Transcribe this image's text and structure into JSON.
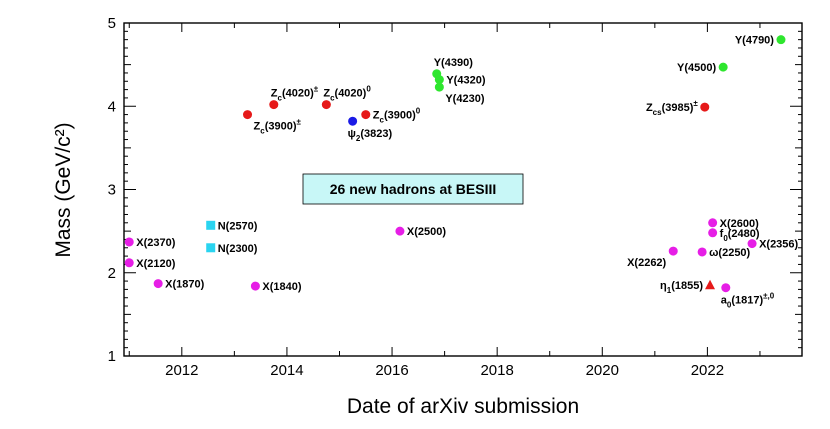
{
  "chart_data": {
    "type": "scatter",
    "title": "",
    "xlabel": "Date of arXiv submission",
    "ylabel": "Mass (GeV/c²)",
    "xlim": [
      2010.9,
      2023.8
    ],
    "ylim": [
      1,
      5
    ],
    "xticks": [
      2012,
      2014,
      2016,
      2018,
      2020,
      2022
    ],
    "yticks": [
      1,
      2,
      3,
      4,
      5
    ],
    "grid": false,
    "annotation": "26 new hadrons at BESIII",
    "colors": {
      "magenta": "#e61ee6",
      "cyan": "#2ad4f0",
      "red": "#e61919",
      "blue": "#1a1ae6",
      "green": "#2ee62e",
      "banner": "#c8f7f7"
    },
    "points": [
      {
        "label": "X(2370)",
        "x": 2011.0,
        "y": 2.37,
        "color": "magenta",
        "marker": "circle",
        "pos": "right"
      },
      {
        "label": "X(2120)",
        "x": 2011.0,
        "y": 2.12,
        "color": "magenta",
        "marker": "circle",
        "pos": "right"
      },
      {
        "label": "X(1870)",
        "x": 2011.55,
        "y": 1.87,
        "color": "magenta",
        "marker": "circle",
        "pos": "right"
      },
      {
        "label": "N(2570)",
        "x": 2012.55,
        "y": 2.57,
        "color": "cyan",
        "marker": "square",
        "pos": "right"
      },
      {
        "label": "N(2300)",
        "x": 2012.55,
        "y": 2.3,
        "color": "cyan",
        "marker": "square",
        "pos": "right"
      },
      {
        "label": "Zc(3900)±",
        "base": "Z",
        "sub": "c",
        "rest": "(3900)",
        "sup": "±",
        "x": 2013.25,
        "y": 3.9,
        "color": "red",
        "marker": "circle",
        "pos": "below-right"
      },
      {
        "label": "X(1840)",
        "x": 2013.4,
        "y": 1.84,
        "color": "magenta",
        "marker": "circle",
        "pos": "right"
      },
      {
        "label": "Zc(4020)±",
        "base": "Z",
        "sub": "c",
        "rest": "(4020)",
        "sup": "±",
        "x": 2013.75,
        "y": 4.02,
        "color": "red",
        "marker": "circle",
        "pos": "above-right"
      },
      {
        "label": "Zc(4020)0",
        "base": "Z",
        "sub": "c",
        "rest": "(4020)",
        "sup": "0",
        "x": 2014.75,
        "y": 4.02,
        "color": "red",
        "marker": "circle",
        "pos": "above-right"
      },
      {
        "label": "ψ2(3823)",
        "base": "ψ",
        "sub": "2",
        "rest": "(3823)",
        "x": 2015.25,
        "y": 3.82,
        "color": "blue",
        "marker": "circle",
        "pos": "below"
      },
      {
        "label": "Zc(3900)0",
        "base": "Z",
        "sub": "c",
        "rest": "(3900)",
        "sup": "0",
        "x": 2015.5,
        "y": 3.9,
        "color": "red",
        "marker": "circle",
        "pos": "right"
      },
      {
        "label": "X(2500)",
        "x": 2016.15,
        "y": 2.5,
        "color": "magenta",
        "marker": "circle",
        "pos": "right"
      },
      {
        "label": "Y(4390)",
        "x": 2016.85,
        "y": 4.39,
        "color": "green",
        "marker": "circle",
        "pos": "above-right"
      },
      {
        "label": "Y(4320)",
        "x": 2016.9,
        "y": 4.32,
        "color": "green",
        "marker": "circle",
        "pos": "right"
      },
      {
        "label": "Y(4230)",
        "x": 2016.9,
        "y": 4.23,
        "color": "green",
        "marker": "circle",
        "pos": "below-right"
      },
      {
        "label": "X(2262)",
        "x": 2021.35,
        "y": 2.26,
        "color": "magenta",
        "marker": "circle",
        "pos": "below-left"
      },
      {
        "label": "Zcs(3985)±",
        "base": "Z",
        "sub": "cs",
        "rest": "(3985)",
        "sup": "±",
        "x": 2021.95,
        "y": 3.99,
        "color": "red",
        "marker": "circle",
        "pos": "left"
      },
      {
        "label": "ω(2250)",
        "x": 2021.9,
        "y": 2.25,
        "color": "magenta",
        "marker": "circle",
        "pos": "right"
      },
      {
        "label": "η1(1855)",
        "base": "η",
        "sub": "1",
        "rest": "(1855)",
        "x": 2022.05,
        "y": 1.85,
        "color": "red",
        "marker": "triangle",
        "pos": "left"
      },
      {
        "label": "X(2600)",
        "x": 2022.1,
        "y": 2.6,
        "color": "magenta",
        "marker": "circle",
        "pos": "right"
      },
      {
        "label": "f0(2480)",
        "base": "f",
        "sub": "0",
        "rest": "(2480)",
        "x": 2022.1,
        "y": 2.48,
        "color": "magenta",
        "marker": "circle",
        "pos": "right"
      },
      {
        "label": "a0(1817)±,0",
        "base": "a",
        "sub": "0",
        "rest": "(1817)",
        "sup": "±,0",
        "x": 2022.35,
        "y": 1.82,
        "color": "magenta",
        "marker": "circle",
        "pos": "below"
      },
      {
        "label": "Y(4500)",
        "x": 2022.3,
        "y": 4.47,
        "color": "green",
        "marker": "circle",
        "pos": "left"
      },
      {
        "label": "X(2356)",
        "x": 2022.85,
        "y": 2.35,
        "color": "magenta",
        "marker": "circle",
        "pos": "right"
      },
      {
        "label": "Y(4790)",
        "x": 2023.4,
        "y": 4.8,
        "color": "green",
        "marker": "circle",
        "pos": "left"
      }
    ]
  }
}
